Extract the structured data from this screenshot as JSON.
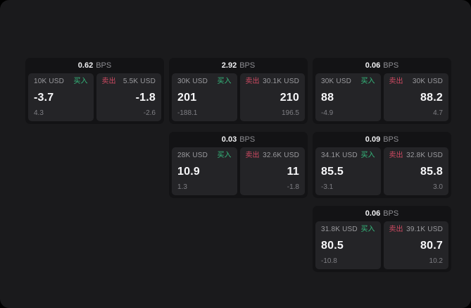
{
  "labels": {
    "bps_unit": "BPS",
    "buy": "买入",
    "sell": "卖出"
  },
  "colors": {
    "buy_green": "#35ba7d",
    "sell_red": "#cf4a62",
    "window_bg": "#1a1a1c",
    "card_bg": "#131315",
    "tile_bg": "#242427"
  },
  "cards": [
    {
      "bps": "0.62",
      "buy": {
        "amount": "10K USD",
        "value": "-3.7",
        "sub": "4.3"
      },
      "sell": {
        "amount": "5.5K USD",
        "value": "-1.8",
        "sub": "-2.6"
      }
    },
    {
      "bps": "2.92",
      "buy": {
        "amount": "30K USD",
        "value": "201",
        "sub": "-188.1"
      },
      "sell": {
        "amount": "30.1K USD",
        "value": "210",
        "sub": "196.5"
      }
    },
    {
      "bps": "0.06",
      "buy": {
        "amount": "30K USD",
        "value": "88",
        "sub": "-4.9"
      },
      "sell": {
        "amount": "30K USD",
        "value": "88.2",
        "sub": "4.7"
      }
    },
    {
      "bps": "0.03",
      "buy": {
        "amount": "28K USD",
        "value": "10.9",
        "sub": "1.3"
      },
      "sell": {
        "amount": "32.6K USD",
        "value": "11",
        "sub": "-1.8"
      }
    },
    {
      "bps": "0.09",
      "buy": {
        "amount": "34.1K USD",
        "value": "85.5",
        "sub": "-3.1"
      },
      "sell": {
        "amount": "32.8K USD",
        "value": "85.8",
        "sub": "3.0"
      }
    },
    {
      "bps": "0.06",
      "buy": {
        "amount": "31.8K USD",
        "value": "80.5",
        "sub": "-10.8"
      },
      "sell": {
        "amount": "39.1K USD",
        "value": "80.7",
        "sub": "10.2"
      }
    }
  ]
}
